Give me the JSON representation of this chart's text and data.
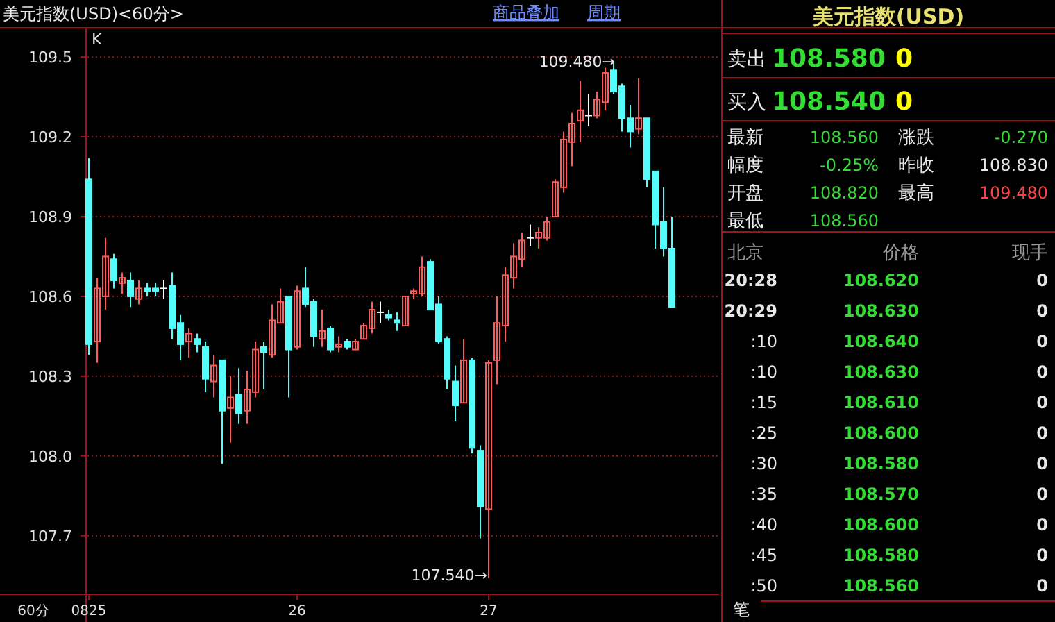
{
  "chart_data": [
    {
      "type": "candlestick",
      "title": "美元指数(USD)<60分>",
      "grid": "y",
      "ylim": [
        107.48,
        109.61
      ],
      "yticks": [
        {
          "value": 107.7,
          "label": "107.7"
        },
        {
          "value": 108,
          "label": "108.0"
        },
        {
          "value": 108.3,
          "label": "108.3"
        },
        {
          "value": 108.6,
          "label": "108.6"
        },
        {
          "value": 108.9,
          "label": "108.9"
        },
        {
          "value": 109.2,
          "label": "109.2"
        },
        {
          "value": 109.5,
          "label": "109.5"
        }
      ],
      "categories": [
        "0825",
        null,
        null,
        null,
        null,
        null,
        null,
        null,
        null,
        null,
        null,
        null,
        null,
        null,
        null,
        null,
        null,
        null,
        null,
        null,
        null,
        null,
        null,
        null,
        null,
        "26",
        null,
        null,
        null,
        null,
        null,
        null,
        null,
        null,
        null,
        null,
        null,
        null,
        null,
        null,
        null,
        null,
        null,
        null,
        null,
        null,
        null,
        null,
        "27",
        null,
        null,
        null,
        null,
        null,
        null,
        null,
        null,
        null,
        null,
        null,
        null,
        null,
        null,
        null,
        null,
        null,
        null,
        null,
        null,
        null,
        null
      ],
      "ohlc": [
        [
          109.04,
          109.12,
          108.38,
          108.42
        ],
        [
          108.43,
          108.67,
          108.35,
          108.63
        ],
        [
          108.6,
          108.82,
          108.55,
          108.75
        ],
        [
          108.74,
          108.76,
          108.63,
          108.66
        ],
        [
          108.65,
          108.69,
          108.61,
          108.67
        ],
        [
          108.66,
          108.69,
          108.56,
          108.6
        ],
        [
          108.59,
          108.66,
          108.57,
          108.63
        ],
        [
          108.63,
          108.65,
          108.6,
          108.62
        ],
        [
          108.63,
          108.65,
          108.6,
          108.62
        ],
        [
          108.63,
          108.66,
          108.59,
          108.63
        ],
        [
          108.64,
          108.69,
          108.44,
          108.48
        ],
        [
          108.5,
          108.53,
          108.36,
          108.42
        ],
        [
          108.43,
          108.48,
          108.37,
          108.46
        ],
        [
          108.44,
          108.46,
          108.39,
          108.42
        ],
        [
          108.41,
          108.43,
          108.24,
          108.29
        ],
        [
          108.28,
          108.38,
          108.22,
          108.34
        ],
        [
          108.36,
          108.36,
          107.97,
          108.17
        ],
        [
          108.18,
          108.3,
          108.05,
          108.22
        ],
        [
          108.23,
          108.33,
          108.12,
          108.16
        ],
        [
          108.17,
          108.32,
          108.12,
          108.25
        ],
        [
          108.24,
          108.43,
          108.22,
          108.4
        ],
        [
          108.41,
          108.43,
          108.25,
          108.39
        ],
        [
          108.38,
          108.57,
          108.37,
          108.51
        ],
        [
          108.5,
          108.63,
          108.5,
          108.58
        ],
        [
          108.6,
          108.6,
          108.22,
          108.4
        ],
        [
          108.41,
          108.64,
          108.4,
          108.62
        ],
        [
          108.63,
          108.71,
          108.56,
          108.57
        ],
        [
          108.58,
          108.59,
          108.41,
          108.45
        ],
        [
          108.44,
          108.55,
          108.41,
          108.47
        ],
        [
          108.48,
          108.49,
          108.39,
          108.4
        ],
        [
          108.41,
          108.45,
          108.39,
          108.42
        ],
        [
          108.43,
          108.44,
          108.4,
          108.41
        ],
        [
          108.4,
          108.44,
          108.4,
          108.43
        ],
        [
          108.44,
          108.5,
          108.44,
          108.49
        ],
        [
          108.48,
          108.58,
          108.46,
          108.55
        ],
        [
          108.54,
          108.58,
          108.5,
          108.54
        ],
        [
          108.53,
          108.55,
          108.51,
          108.52
        ],
        [
          108.51,
          108.54,
          108.47,
          108.5
        ],
        [
          108.49,
          108.6,
          108.49,
          108.6
        ],
        [
          108.61,
          108.63,
          108.59,
          108.62
        ],
        [
          108.61,
          108.75,
          108.6,
          108.71
        ],
        [
          108.73,
          108.74,
          108.55,
          108.55
        ],
        [
          108.57,
          108.6,
          108.42,
          108.43
        ],
        [
          108.44,
          108.45,
          108.25,
          108.29
        ],
        [
          108.28,
          108.34,
          108.13,
          108.19
        ],
        [
          108.2,
          108.44,
          108.2,
          108.36
        ],
        [
          108.36,
          108.37,
          108.01,
          108.03
        ],
        [
          108.02,
          108.04,
          107.69,
          107.81
        ],
        [
          107.8,
          108.36,
          107.54,
          108.35
        ],
        [
          108.36,
          108.6,
          108.27,
          108.5
        ],
        [
          108.49,
          108.71,
          108.43,
          108.68
        ],
        [
          108.67,
          108.8,
          108.63,
          108.75
        ],
        [
          108.74,
          108.84,
          108.71,
          108.81
        ],
        [
          108.82,
          108.87,
          108.79,
          108.82
        ],
        [
          108.82,
          108.86,
          108.78,
          108.84
        ],
        [
          108.82,
          108.9,
          108.81,
          108.88
        ],
        [
          108.9,
          109.04,
          108.9,
          109.03
        ],
        [
          109.01,
          109.22,
          108.99,
          109.19
        ],
        [
          109.18,
          109.29,
          109.09,
          109.25
        ],
        [
          109.26,
          109.41,
          109.18,
          109.3
        ],
        [
          109.28,
          109.36,
          109.24,
          109.28
        ],
        [
          109.28,
          109.37,
          109.27,
          109.34
        ],
        [
          109.33,
          109.46,
          109.3,
          109.44
        ],
        [
          109.45,
          109.48,
          109.36,
          109.37
        ],
        [
          109.39,
          109.4,
          109.22,
          109.27
        ],
        [
          109.27,
          109.32,
          109.16,
          109.22
        ],
        [
          109.23,
          109.42,
          109.21,
          109.27
        ],
        [
          109.27,
          109.27,
          109.01,
          109.04
        ],
        [
          109.07,
          109.07,
          108.78,
          108.87
        ],
        [
          108.88,
          109.01,
          108.75,
          108.78
        ],
        [
          108.78,
          108.9,
          108.56,
          108.56
        ]
      ],
      "annotations": [
        "109.480→",
        "107.540→",
        "K",
        "60分",
        "商品叠加",
        "周期"
      ]
    },
    {
      "type": "other",
      "title": "美元指数(USD)",
      "annotations": [
        "卖出",
        "108.580",
        "0",
        "买入",
        "108.540",
        "0",
        "最新",
        "108.560",
        "涨跌",
        "-0.270",
        "幅度",
        "-0.25%",
        "昨收",
        "108.830",
        "开盘",
        "108.820",
        "最高",
        "109.480",
        "最低",
        "108.560",
        "北京",
        "价格",
        "现手",
        "20:28",
        "108.620",
        "0",
        "20:29",
        "108.630",
        "0",
        ":10",
        "108.640",
        "0",
        ":10",
        "108.630",
        "0",
        ":15",
        "108.610",
        "0",
        ":25",
        "108.600",
        "0",
        ":30",
        "108.580",
        "0",
        ":35",
        "108.570",
        "0",
        ":40",
        "108.600",
        "0",
        ":45",
        "108.580",
        "0",
        ":50",
        "108.560",
        "0",
        "笔"
      ]
    }
  ]
}
